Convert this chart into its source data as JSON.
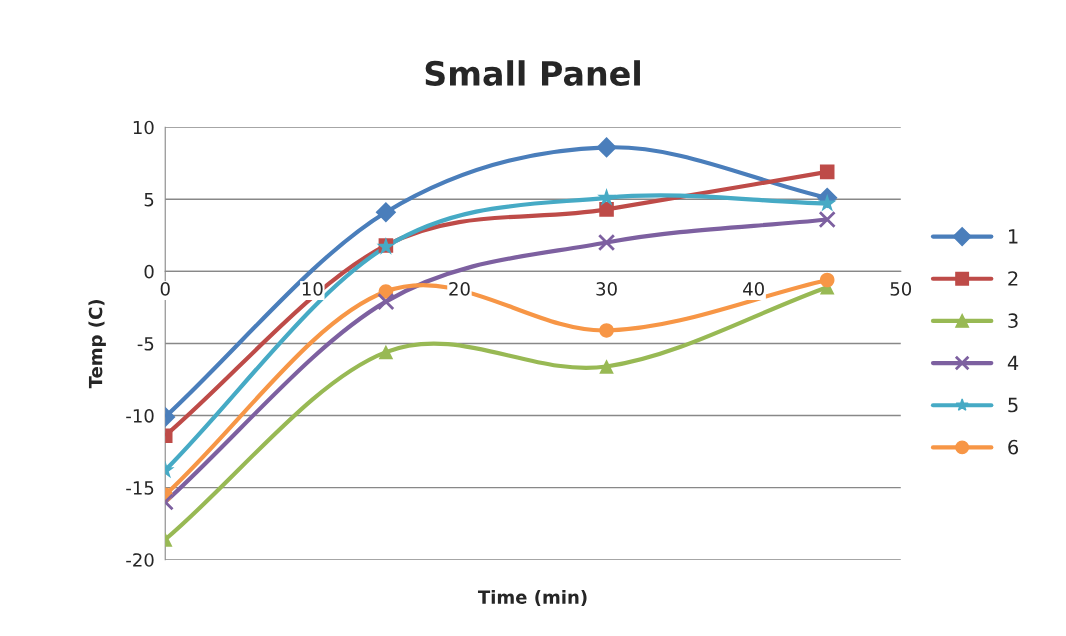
{
  "chart_data": {
    "type": "line",
    "title": "Small Panel",
    "xlabel": "Time (min)",
    "ylabel": "Temp (C)",
    "x": [
      0,
      15,
      30,
      45
    ],
    "series": [
      {
        "name": "1",
        "color": "#4a7ebb",
        "marker": "diamond",
        "values": [
          -10.1,
          4.1,
          8.6,
          5.1
        ]
      },
      {
        "name": "2",
        "color": "#be4b48",
        "marker": "square",
        "values": [
          -11.4,
          1.8,
          4.3,
          6.9
        ]
      },
      {
        "name": "3",
        "color": "#98b954",
        "marker": "triangle",
        "values": [
          -18.6,
          -5.6,
          -6.6,
          -1.1
        ]
      },
      {
        "name": "4",
        "color": "#7d60a0",
        "marker": "cross",
        "values": [
          -16.0,
          -2.1,
          2.0,
          3.6
        ]
      },
      {
        "name": "5",
        "color": "#46aac5",
        "marker": "star",
        "values": [
          -13.8,
          1.7,
          5.1,
          4.7
        ]
      },
      {
        "name": "6",
        "color": "#f79646",
        "marker": "circle",
        "values": [
          -15.5,
          -1.4,
          -4.1,
          -0.6
        ]
      }
    ],
    "xlim": [
      0,
      50
    ],
    "xticks": [
      0,
      10,
      20,
      30,
      40,
      50
    ],
    "ylim": [
      -20,
      10
    ],
    "yticks": [
      -20,
      -15,
      -10,
      -5,
      0,
      5,
      10
    ],
    "grid": "y",
    "legend": "right",
    "line_style": "solid"
  }
}
